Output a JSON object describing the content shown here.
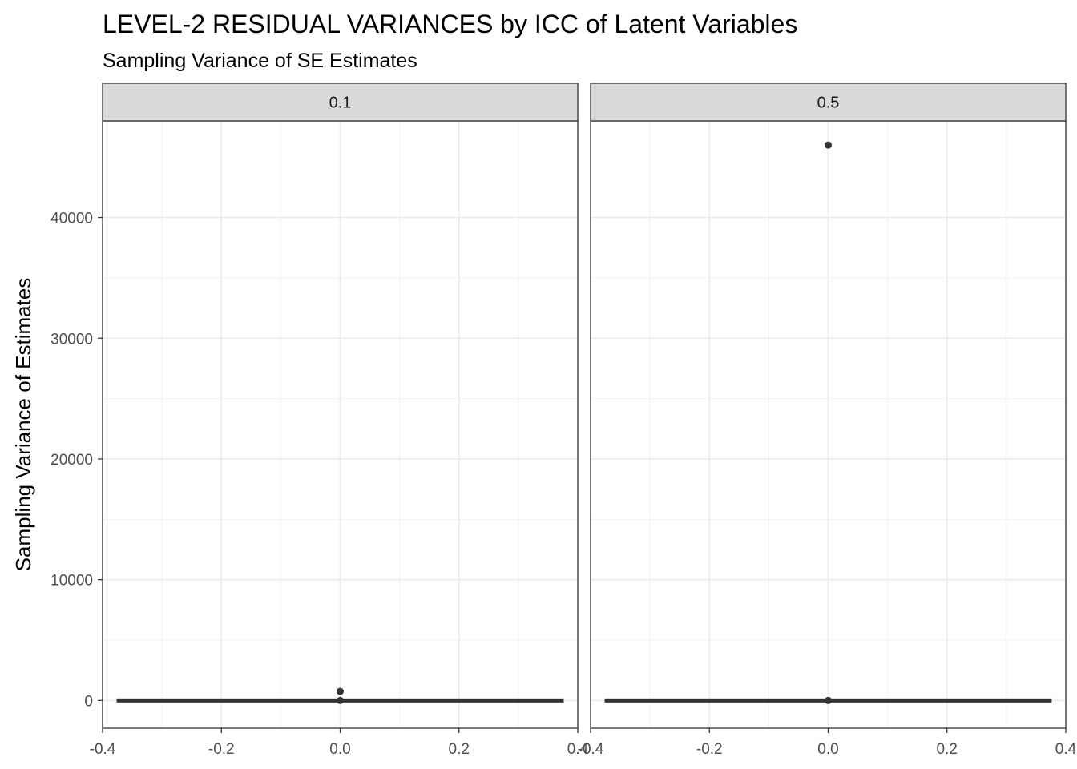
{
  "chart_data": {
    "type": "boxplot",
    "title": "LEVEL-2 RESIDUAL VARIANCES by ICC of Latent Variables",
    "subtitle": "Sampling Variance of SE Estimates",
    "xlabel": "",
    "ylabel": "Sampling Variance of Estimates",
    "xlim": [
      -0.4,
      0.4
    ],
    "ylim": [
      -2300,
      48000
    ],
    "x_ticks": [
      -0.4,
      -0.2,
      0.0,
      0.2,
      0.4
    ],
    "x_tick_labels": [
      "-0.4",
      "-0.2",
      "0.0",
      "0.2",
      "0.4"
    ],
    "y_ticks": [
      0,
      10000,
      20000,
      30000,
      40000
    ],
    "y_tick_labels": [
      "0",
      "10000",
      "20000",
      "30000",
      "40000"
    ],
    "grid": true,
    "colors": {
      "box": "#333333",
      "strip_fill": "#d9d9d9",
      "grid": "#ebebeb",
      "panel_border": "#333333"
    },
    "panels": [
      {
        "facet_label": "0.1",
        "box": {
          "x": 0,
          "half_width": 0.375,
          "q1": 0,
          "median": 0,
          "q3": 0,
          "whisker_low": 0,
          "whisker_high": 0
        },
        "outliers": [
          {
            "x": 0,
            "y": 750
          },
          {
            "x": 0,
            "y": 0
          }
        ]
      },
      {
        "facet_label": "0.5",
        "box": {
          "x": 0,
          "half_width": 0.375,
          "q1": 0,
          "median": 0,
          "q3": 0,
          "whisker_low": 0,
          "whisker_high": 0
        },
        "outliers": [
          {
            "x": 0,
            "y": 46000
          },
          {
            "x": 0,
            "y": 0
          }
        ]
      }
    ]
  }
}
